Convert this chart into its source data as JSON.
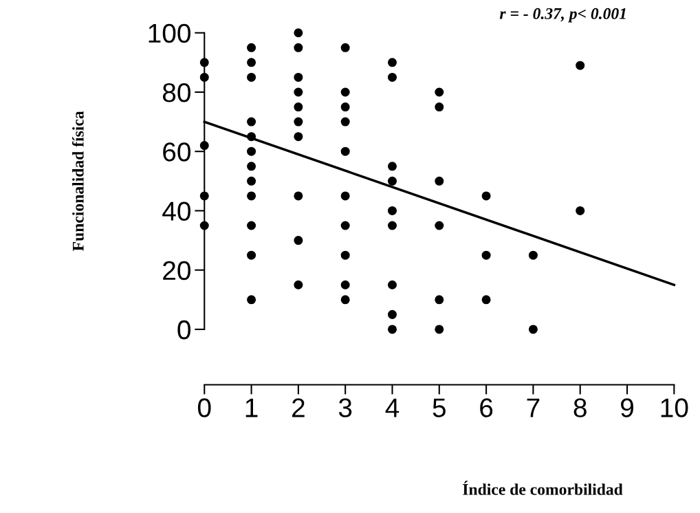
{
  "chart_data": {
    "type": "scatter",
    "xlabel": "Índice de comorbilidad",
    "ylabel": "Funcionalidad física",
    "annotations": [
      "r = - 0.37, p< 0.001"
    ],
    "series": [
      {
        "marker": "circle",
        "color": "#000000",
        "x": [
          0,
          0,
          0,
          0,
          0,
          1,
          1,
          1,
          1,
          1,
          1,
          1,
          1,
          1,
          1,
          1,
          1,
          2,
          2,
          2,
          2,
          2,
          2,
          2,
          2,
          2,
          2,
          3,
          3,
          3,
          3,
          3,
          3,
          3,
          3,
          3,
          3,
          4,
          4,
          4,
          4,
          4,
          4,
          4,
          4,
          4,
          5,
          5,
          5,
          5,
          5,
          5,
          6,
          6,
          6,
          7,
          7,
          8,
          8
        ],
        "values": [
          90,
          85,
          62,
          45,
          35,
          95,
          90,
          85,
          70,
          65,
          60,
          55,
          50,
          45,
          35,
          25,
          10,
          100,
          95,
          85,
          80,
          75,
          70,
          65,
          45,
          30,
          15,
          95,
          80,
          75,
          70,
          60,
          45,
          35,
          25,
          15,
          10,
          90,
          85,
          55,
          50,
          40,
          35,
          15,
          5,
          0,
          80,
          75,
          50,
          35,
          10,
          0,
          45,
          25,
          10,
          25,
          0,
          89,
          40
        ]
      },
      {
        "type": "line",
        "color": "#000000",
        "x": [
          0,
          10
        ],
        "values": [
          70,
          15
        ]
      }
    ],
    "xlim": [
      0,
      10
    ],
    "ylim": [
      0,
      100
    ],
    "xticks": [
      0,
      1,
      2,
      3,
      4,
      5,
      6,
      7,
      8,
      9,
      10
    ],
    "yticks": [
      0,
      20,
      40,
      60,
      80,
      100
    ],
    "grid": false,
    "legend": false
  }
}
